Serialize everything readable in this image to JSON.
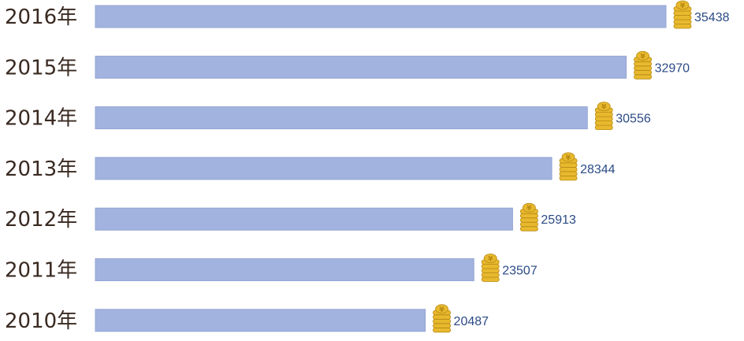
{
  "colors": {
    "bar": "#a3b3e0",
    "bar_edge": "#93a4d4",
    "coin": "#e8b92e",
    "coin_dark": "#b88a12",
    "year_text": "#3a2a22",
    "value_text": "#2b4a86"
  },
  "chart_data": {
    "type": "bar",
    "orientation": "horizontal",
    "categories": [
      "2016年",
      "2015年",
      "2014年",
      "2013年",
      "2012年",
      "2011年",
      "2010年"
    ],
    "values": [
      35438,
      32970,
      30556,
      28344,
      25913,
      23507,
      20487
    ],
    "value_labels": [
      "35438",
      "32970",
      "30556",
      "28344",
      "25913",
      "23507",
      "20487"
    ],
    "marker_icon": "coin-stack-icon",
    "xlim": [
      0,
      36000
    ],
    "grid": false,
    "legend": "none",
    "title": "",
    "xlabel": "",
    "ylabel": ""
  }
}
